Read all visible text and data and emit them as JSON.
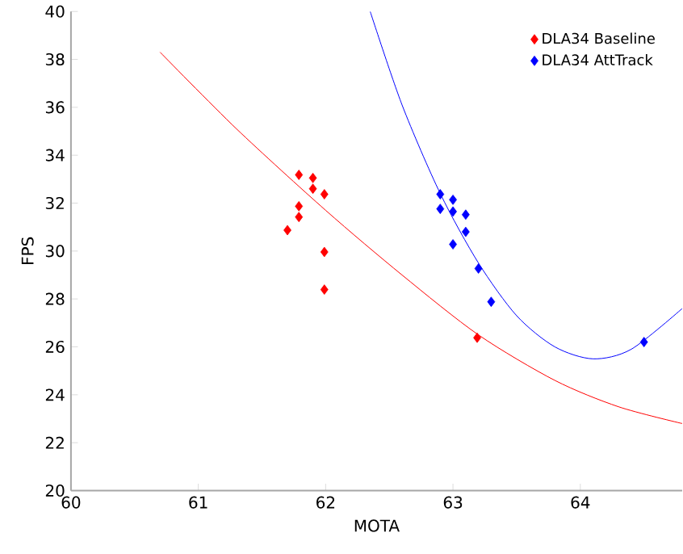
{
  "chart_data": {
    "type": "scatter",
    "xlabel": "MOTA",
    "ylabel": "FPS",
    "xlim": [
      60,
      64.8
    ],
    "ylim": [
      20,
      40
    ],
    "xticks": [
      60,
      61,
      62,
      63,
      64
    ],
    "yticks": [
      20,
      22,
      24,
      26,
      28,
      30,
      32,
      34,
      36,
      38,
      40
    ],
    "grid": false,
    "legend": "top right",
    "marker": "diamond",
    "series": [
      {
        "type": "line",
        "marker": "none",
        "color": "#ff0000",
        "x": [
          60.7,
          61.3,
          62.0,
          62.6,
          63.2,
          63.8,
          64.3,
          64.8
        ],
        "values": [
          38.3,
          35.1,
          31.7,
          29.0,
          26.5,
          24.6,
          23.5,
          22.8
        ]
      },
      {
        "type": "line",
        "marker": "none",
        "color": "#0000ff",
        "x": [
          62.35,
          62.6,
          62.9,
          63.2,
          63.5,
          63.8,
          64.1,
          64.4,
          64.8
        ],
        "values": [
          40.0,
          36.1,
          32.4,
          29.5,
          27.3,
          26.0,
          25.5,
          25.9,
          27.6
        ]
      },
      {
        "name": "DLA34 Baseline",
        "color": "#ff0000",
        "x": [
          61.79,
          61.9,
          61.9,
          61.99,
          61.79,
          61.79,
          61.7,
          61.99,
          61.99,
          63.19
        ],
        "values": [
          33.18,
          33.05,
          32.6,
          32.37,
          31.87,
          31.42,
          30.87,
          29.96,
          28.39,
          26.38
        ]
      },
      {
        "name": "DLA34 AttTrack",
        "color": "#0000ff",
        "x": [
          62.9,
          62.9,
          63.0,
          63.0,
          63.1,
          63.1,
          63.0,
          63.2,
          63.3,
          64.5
        ],
        "values": [
          32.37,
          31.76,
          32.14,
          31.65,
          31.52,
          30.8,
          30.28,
          29.27,
          27.88,
          26.2
        ]
      }
    ]
  }
}
